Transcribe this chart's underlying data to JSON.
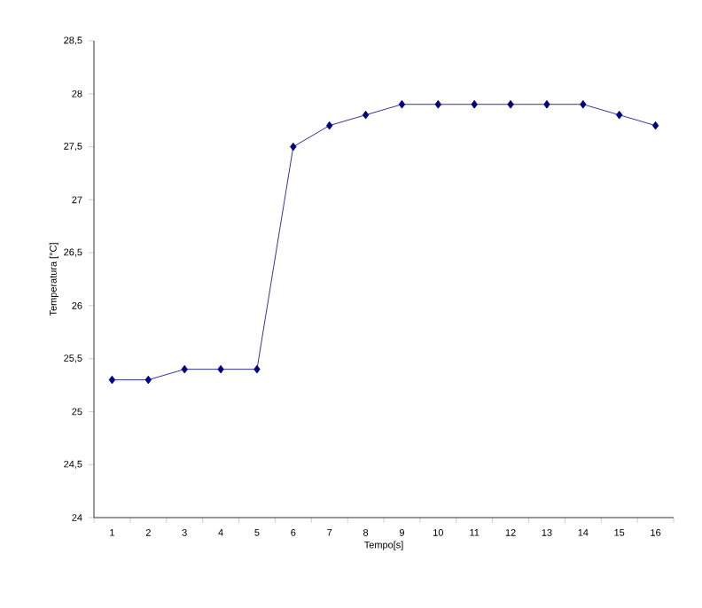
{
  "chart_data": {
    "type": "line",
    "xlabel": "Tempo[s]",
    "ylabel": "Temperatura [°C]",
    "categories": [
      "1",
      "2",
      "3",
      "4",
      "5",
      "6",
      "7",
      "8",
      "9",
      "10",
      "11",
      "12",
      "13",
      "14",
      "15",
      "16"
    ],
    "series": [
      {
        "color": "#000080",
        "values": [
          25.3,
          25.3,
          25.4,
          25.4,
          25.4,
          27.5,
          27.7,
          27.8,
          27.9,
          27.9,
          27.9,
          27.9,
          27.9,
          27.9,
          27.8,
          27.7
        ]
      }
    ],
    "ylim": [
      24,
      28.5
    ],
    "yticks": [
      24,
      {
        "value": 24.5,
        "label": "24,5"
      },
      25,
      {
        "value": 25.5,
        "label": "25,5"
      },
      26,
      {
        "value": 26.5,
        "label": "26,5"
      },
      27,
      {
        "value": 27.5,
        "label": "27,5"
      },
      28,
      {
        "value": 28.5,
        "label": "28,5"
      }
    ],
    "marker": "diamond",
    "line_style": "solid",
    "grid": false
  }
}
